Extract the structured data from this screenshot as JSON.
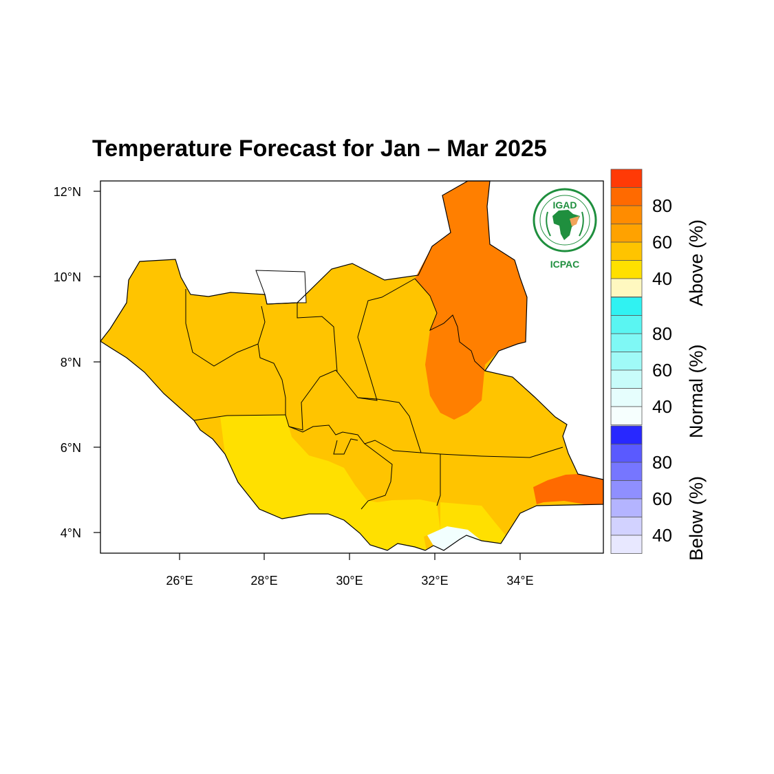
{
  "title": "Temperature Forecast for Jan – Mar 2025",
  "map": {
    "lat_ticks": [
      "12°N",
      "10°N",
      "8°N",
      "6°N",
      "4°N"
    ],
    "lon_ticks": [
      "26°E",
      "28°E",
      "30°E",
      "32°E",
      "34°E"
    ]
  },
  "legend": {
    "categories": [
      {
        "label": "Above (%)",
        "tick_labels": [
          "80",
          "60",
          "40"
        ],
        "colors": [
          "#ff3a06",
          "#ff6a00",
          "#ff8c00",
          "#ffa200",
          "#ffc400",
          "#ffe000",
          "#fff8c0"
        ]
      },
      {
        "label": "Normal (%)",
        "tick_labels": [
          "80",
          "60",
          "40"
        ],
        "colors": [
          "#30f2f2",
          "#5af5f2",
          "#7ff8f5",
          "#a0faf7",
          "#c8fcfa",
          "#e6fefd",
          "#f6fffe"
        ]
      },
      {
        "label": "Below (%)",
        "tick_labels": [
          "80",
          "60",
          "40"
        ],
        "colors": [
          "#2828ff",
          "#5a5aff",
          "#7676ff",
          "#8f8fff",
          "#b4b4ff",
          "#d2d2ff",
          "#e8e8ff"
        ]
      }
    ]
  },
  "logo": {
    "name": "IGAD",
    "subname": "ICPAC"
  },
  "fill_colors": {
    "above_45": "#ffc400",
    "above_40": "#ffe000",
    "above_65": "#ff7f00",
    "above_70": "#ff6a00",
    "normal_40": "#f2fffe"
  }
}
